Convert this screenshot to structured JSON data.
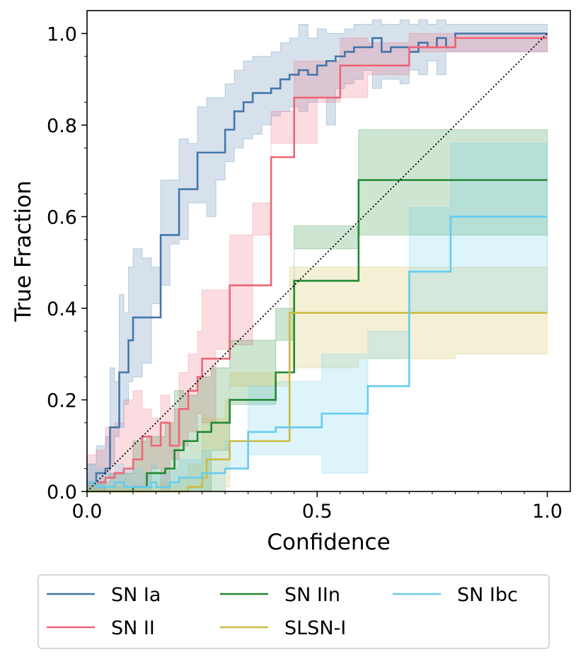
{
  "chart_data": {
    "type": "line",
    "xlabel": "Confidence",
    "ylabel": "True Fraction",
    "xlim": [
      0.0,
      1.05
    ],
    "ylim": [
      0.0,
      1.05
    ],
    "x_ticks": [
      "0.0",
      "0.5",
      "1.0"
    ],
    "y_ticks": [
      "0.0",
      "0.2",
      "0.4",
      "0.6",
      "0.8",
      "1.0"
    ],
    "grid": false,
    "legend_position": "below",
    "reference_line": {
      "name": "perfect-calibration",
      "style": "dotted",
      "color": "#000000",
      "x": [
        0,
        1
      ],
      "y": [
        0,
        1
      ]
    },
    "series": [
      {
        "name": "SN Ia",
        "color": "#4477aa",
        "x": [
          0.0,
          0.02,
          0.04,
          0.05,
          0.06,
          0.07,
          0.08,
          0.09,
          0.1,
          0.12,
          0.14,
          0.16,
          0.18,
          0.2,
          0.22,
          0.24,
          0.26,
          0.28,
          0.3,
          0.32,
          0.34,
          0.36,
          0.38,
          0.4,
          0.42,
          0.44,
          0.46,
          0.48,
          0.5,
          0.52,
          0.54,
          0.56,
          0.58,
          0.6,
          0.62,
          0.64,
          0.66,
          0.68,
          0.7,
          0.72,
          0.74,
          0.76,
          0.78,
          0.8,
          0.82,
          0.84,
          0.86,
          0.88,
          0.9,
          0.92,
          0.94,
          0.96,
          0.98,
          1.0
        ],
        "y": [
          0.02,
          0.04,
          0.05,
          0.14,
          0.14,
          0.26,
          0.26,
          0.33,
          0.38,
          0.38,
          0.38,
          0.56,
          0.56,
          0.66,
          0.66,
          0.74,
          0.74,
          0.74,
          0.79,
          0.83,
          0.85,
          0.87,
          0.87,
          0.88,
          0.9,
          0.91,
          0.92,
          0.91,
          0.93,
          0.94,
          0.95,
          0.96,
          0.97,
          0.97,
          0.99,
          0.96,
          0.97,
          0.97,
          0.96,
          0.98,
          0.97,
          0.99,
          0.97,
          1.0,
          1.0,
          1.0,
          1.0,
          1.0,
          1.0,
          1.0,
          1.0,
          1.0,
          1.0,
          1.0
        ],
        "lower": [
          0.0,
          0.0,
          0.0,
          0.03,
          0.06,
          0.12,
          0.14,
          0.19,
          0.24,
          0.25,
          0.28,
          0.41,
          0.45,
          0.54,
          0.55,
          0.63,
          0.63,
          0.6,
          0.68,
          0.72,
          0.75,
          0.77,
          0.78,
          0.8,
          0.82,
          0.83,
          0.84,
          0.83,
          0.85,
          0.86,
          0.8,
          0.88,
          0.89,
          0.9,
          0.92,
          0.88,
          0.9,
          0.9,
          0.89,
          0.92,
          0.91,
          0.94,
          0.91,
          0.96,
          0.96,
          0.96,
          0.96,
          0.96,
          0.96,
          0.96,
          0.96,
          0.96,
          0.96,
          0.96
        ],
        "upper": [
          0.06,
          0.1,
          0.12,
          0.27,
          0.24,
          0.43,
          0.39,
          0.49,
          0.53,
          0.51,
          0.49,
          0.68,
          0.68,
          0.77,
          0.76,
          0.84,
          0.86,
          0.86,
          0.89,
          0.92,
          0.94,
          0.95,
          0.95,
          0.96,
          0.98,
          0.99,
          1.02,
          0.99,
          1.01,
          1.0,
          1.0,
          1.01,
          1.02,
          1.02,
          1.03,
          1.02,
          1.02,
          1.03,
          1.02,
          1.03,
          1.02,
          1.03,
          1.02,
          1.02,
          1.02,
          1.02,
          1.02,
          1.02,
          1.02,
          1.02,
          1.02,
          1.02,
          1.02,
          1.02
        ]
      },
      {
        "name": "SN II",
        "color": "#ee6677",
        "x": [
          0.0,
          0.02,
          0.04,
          0.06,
          0.08,
          0.1,
          0.12,
          0.14,
          0.16,
          0.18,
          0.2,
          0.22,
          0.24,
          0.25,
          0.28,
          0.31,
          0.36,
          0.4,
          0.45,
          0.5,
          0.55,
          0.61,
          0.7,
          0.8,
          0.9,
          1.0
        ],
        "y": [
          0.02,
          0.02,
          0.03,
          0.04,
          0.05,
          0.07,
          0.12,
          0.1,
          0.15,
          0.1,
          0.18,
          0.22,
          0.25,
          0.29,
          0.29,
          0.45,
          0.45,
          0.73,
          0.86,
          0.86,
          0.93,
          0.93,
          0.97,
          0.99,
          0.99,
          0.99
        ],
        "lower": [
          0.0,
          0.0,
          0.0,
          0.0,
          0.0,
          0.0,
          0.0,
          0.0,
          0.05,
          0.0,
          0.07,
          0.1,
          0.13,
          0.17,
          0.15,
          0.31,
          0.32,
          0.63,
          0.76,
          0.76,
          0.85,
          0.86,
          0.91,
          0.96,
          0.96,
          0.96
        ],
        "upper": [
          0.08,
          0.09,
          0.14,
          0.15,
          0.2,
          0.22,
          0.18,
          0.16,
          0.21,
          0.18,
          0.26,
          0.3,
          0.35,
          0.44,
          0.44,
          0.56,
          0.56,
          0.83,
          0.94,
          0.94,
          0.99,
          0.98,
          1.0,
          1.0,
          1.0,
          1.0
        ]
      },
      {
        "name": "SN IIn",
        "color": "#228833",
        "x": [
          0.0,
          0.05,
          0.1,
          0.13,
          0.17,
          0.19,
          0.21,
          0.24,
          0.27,
          0.31,
          0.41,
          0.45,
          0.59,
          0.65,
          1.0
        ],
        "y": [
          0.0,
          0.0,
          0.01,
          0.04,
          0.05,
          0.09,
          0.11,
          0.13,
          0.15,
          0.2,
          0.26,
          0.46,
          0.68,
          0.68,
          0.68
        ],
        "lower": [
          0.0,
          0.0,
          0.0,
          0.0,
          0.0,
          0.0,
          0.0,
          0.0,
          0.0,
          0.09,
          0.19,
          0.33,
          0.53,
          0.56,
          0.56
        ],
        "upper": [
          0.02,
          0.04,
          0.11,
          0.12,
          0.15,
          0.22,
          0.21,
          0.25,
          0.27,
          0.33,
          0.4,
          0.58,
          0.79,
          0.79,
          0.79
        ]
      },
      {
        "name": "SLSN-I",
        "color": "#ccbb44",
        "x": [
          0.0,
          0.15,
          0.2,
          0.22,
          0.25,
          0.26,
          0.3,
          0.31,
          0.44,
          0.59,
          0.8,
          1.0
        ],
        "y": [
          0.0,
          0.0,
          0.0,
          0.01,
          0.03,
          0.07,
          0.07,
          0.11,
          0.39,
          0.39,
          0.39,
          0.39
        ],
        "lower": [
          0.0,
          0.0,
          0.0,
          0.0,
          0.0,
          0.0,
          0.0,
          0.01,
          0.23,
          0.27,
          0.29,
          0.3
        ],
        "upper": [
          0.01,
          0.02,
          0.03,
          0.06,
          0.16,
          0.16,
          0.2,
          0.26,
          0.49,
          0.49,
          0.49,
          0.6
        ]
      },
      {
        "name": "SN Ibc",
        "color": "#66ccee",
        "x": [
          0.0,
          0.02,
          0.04,
          0.06,
          0.08,
          0.1,
          0.12,
          0.14,
          0.15,
          0.18,
          0.2,
          0.25,
          0.3,
          0.35,
          0.41,
          0.51,
          0.61,
          0.7,
          0.79,
          1.0
        ],
        "y": [
          0.02,
          0.01,
          0.01,
          0.02,
          0.01,
          0.01,
          0.01,
          0.02,
          0.01,
          0.02,
          0.03,
          0.04,
          0.05,
          0.13,
          0.14,
          0.17,
          0.23,
          0.48,
          0.6,
          0.6
        ],
        "lower": [
          0.0,
          0.0,
          0.0,
          0.0,
          0.0,
          0.0,
          0.0,
          0.0,
          0.0,
          0.0,
          0.0,
          0.0,
          0.0,
          0.05,
          0.08,
          0.08,
          0.04,
          0.29,
          0.39,
          0.39
        ],
        "upper": [
          0.06,
          0.05,
          0.04,
          0.06,
          0.05,
          0.05,
          0.04,
          0.06,
          0.04,
          0.05,
          0.07,
          0.09,
          0.11,
          0.23,
          0.24,
          0.3,
          0.35,
          0.62,
          0.76,
          0.76
        ]
      }
    ]
  }
}
